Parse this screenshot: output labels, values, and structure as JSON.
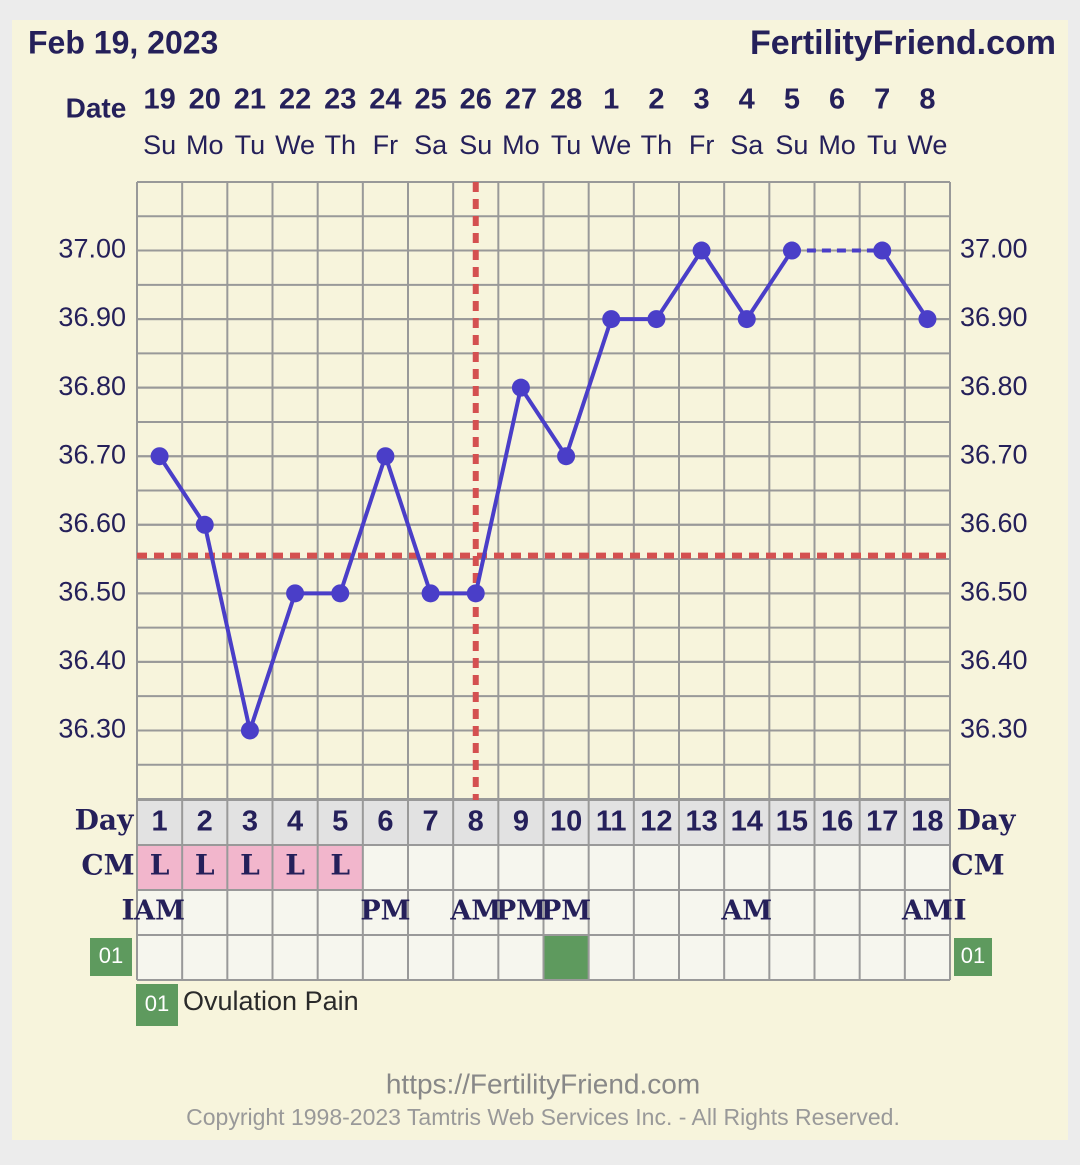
{
  "header": {
    "date": "Feb 19, 2023",
    "site": "FertilityFriend.com"
  },
  "chart_data": {
    "type": "line",
    "date_label": "Date",
    "dates": [
      "19",
      "20",
      "21",
      "22",
      "23",
      "24",
      "25",
      "26",
      "27",
      "28",
      "1",
      "2",
      "3",
      "4",
      "5",
      "6",
      "7",
      "8"
    ],
    "weekdays": [
      "Su",
      "Mo",
      "Tu",
      "We",
      "Th",
      "Fr",
      "Sa",
      "Su",
      "Mo",
      "Tu",
      "We",
      "Th",
      "Fr",
      "Sa",
      "Su",
      "Mo",
      "Tu",
      "We"
    ],
    "day_label": "Day",
    "days": [
      1,
      2,
      3,
      4,
      5,
      6,
      7,
      8,
      9,
      10,
      11,
      12,
      13,
      14,
      15,
      16,
      17,
      18
    ],
    "series": [
      {
        "color": "#4a3ec8",
        "values": [
          36.7,
          36.6,
          36.3,
          36.5,
          36.5,
          36.7,
          36.5,
          36.5,
          36.8,
          36.7,
          36.9,
          36.9,
          37.0,
          36.9,
          37.0,
          null,
          37.0,
          36.9
        ]
      }
    ],
    "ylim": [
      36.2,
      37.1
    ],
    "yticks": [
      {
        "value": 36.3,
        "label": "36.30"
      },
      {
        "value": 36.4,
        "label": "36.40"
      },
      {
        "value": 36.5,
        "label": "36.50"
      },
      {
        "value": 36.6,
        "label": "36.60"
      },
      {
        "value": 36.7,
        "label": "36.70"
      },
      {
        "value": 36.8,
        "label": "36.80"
      },
      {
        "value": 36.9,
        "label": "36.90"
      },
      {
        "value": 37.0,
        "label": "37.00"
      }
    ],
    "grid": true,
    "coverline": 36.555,
    "coverline_color": "#d45050",
    "ovulation_day": 8,
    "cm_label": "CM",
    "cm": [
      "L",
      "L",
      "L",
      "L",
      "L",
      null,
      null,
      null,
      null,
      null,
      null,
      null,
      null,
      null,
      null,
      null,
      null,
      null
    ],
    "time_marker": "I",
    "times": [
      "AM",
      null,
      null,
      null,
      null,
      "PM",
      null,
      "AM",
      "PM",
      "PM",
      null,
      null,
      null,
      "AM",
      null,
      null,
      null,
      "AM"
    ],
    "pain_code": "01",
    "pain_days": [
      10
    ]
  },
  "legend": {
    "code": "01",
    "label": "Ovulation Pain"
  },
  "footer": {
    "url": "https://FertilityFriend.com",
    "copyright": "Copyright 1998-2023 Tamtris Web Services Inc. - All Rights Reserved."
  }
}
